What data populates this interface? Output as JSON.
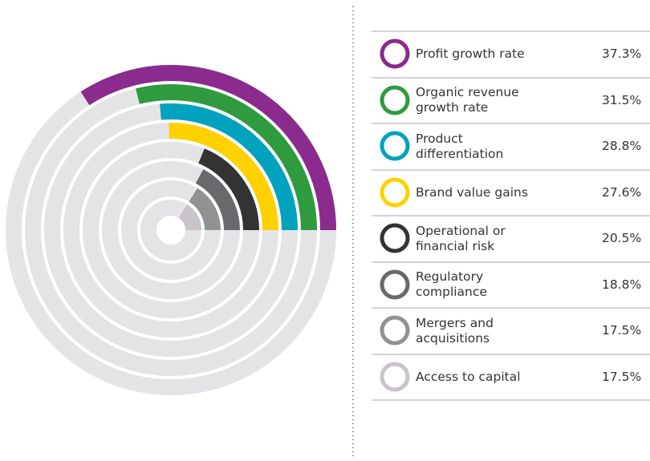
{
  "chart_data": {
    "type": "radial-bar",
    "categories": [
      "Profit growth rate",
      "Organic revenue growth rate",
      "Product differentiation",
      "Brand value gains",
      "Operational or financial risk",
      "Regulatory compliance",
      "Mergers and acquisitions",
      "Access to capital"
    ],
    "values": [
      37.3,
      31.5,
      28.8,
      27.6,
      20.5,
      18.8,
      17.5,
      17.5
    ],
    "value_labels": [
      "37.3%",
      "31.5%",
      "28.8%",
      "27.6%",
      "20.5%",
      "18.8%",
      "17.5%",
      "17.5%"
    ],
    "colors": [
      "#8a2b8d",
      "#2f9a3e",
      "#00a2bd",
      "#ffd100",
      "#333333",
      "#68696c",
      "#909292",
      "#c9c3cc"
    ]
  }
}
